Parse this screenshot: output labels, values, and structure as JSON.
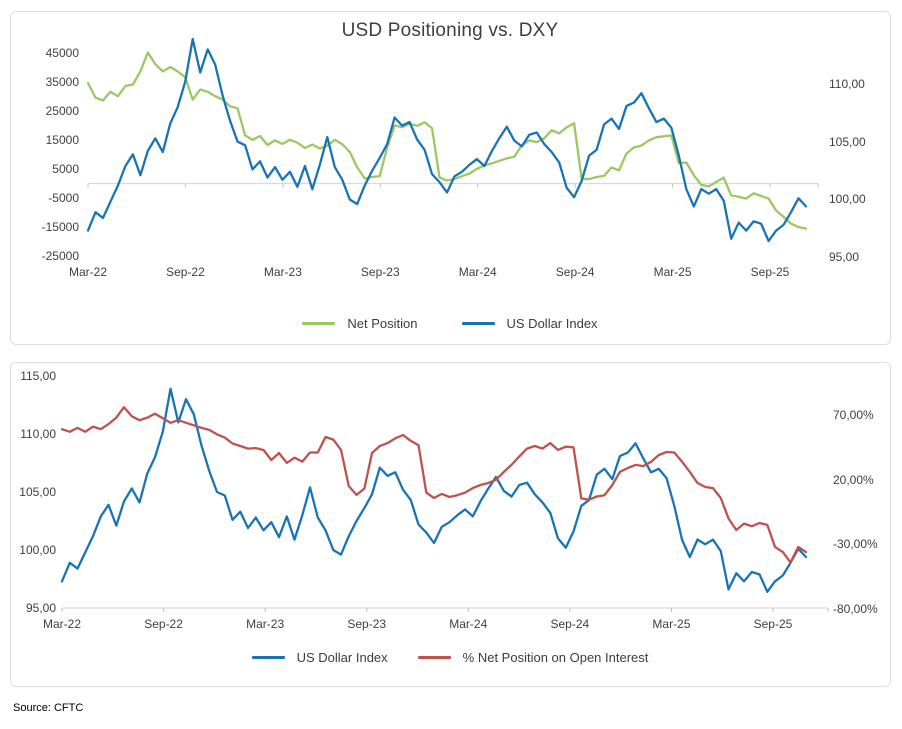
{
  "source_note": "Source: CFTC",
  "colors": {
    "net_position_green": "#9CC862",
    "dxy_blue": "#1874B6",
    "pct_net_red": "#BE534E",
    "axis_line": "#D9D9D9",
    "tick_mark": "#BFBFBF",
    "text": "#404040"
  },
  "chart_data": [
    {
      "type": "line",
      "title": "USD Positioning vs. DXY",
      "legend_position": "bottom",
      "grid": "single horizontal line at zero of left axis",
      "x_tick_labels": [
        "Mar-22",
        "Sep-22",
        "Mar-23",
        "Sep-23",
        "Mar-24",
        "Sep-24",
        "Mar-25",
        "Sep-25"
      ],
      "left_axis": {
        "ylim": [
          -25000,
          50000
        ],
        "tick_values": [
          45000,
          35000,
          25000,
          15000,
          5000,
          -5000,
          -15000,
          -25000
        ],
        "tick_labels": [
          "45000",
          "35000",
          "25000",
          "15000",
          "5000",
          "-5000",
          "-15000",
          "-25000"
        ]
      },
      "right_axis": {
        "ylim": [
          93,
          115
        ],
        "tick_values": [
          110,
          105,
          100,
          95
        ],
        "tick_labels": [
          "110,00",
          "105,00",
          "100,00",
          "95,00"
        ]
      },
      "series": [
        {
          "name": "Net Position",
          "axis": "left",
          "color": "#9CC862",
          "values": [
            34500,
            29500,
            28500,
            31500,
            30000,
            33500,
            34000,
            38500,
            45000,
            41000,
            38500,
            40000,
            38500,
            36500,
            28800,
            32300,
            31500,
            30000,
            28800,
            26500,
            25800,
            16500,
            15000,
            16300,
            13200,
            14800,
            13600,
            15000,
            14000,
            12200,
            13400,
            12000,
            13000,
            15000,
            13500,
            10800,
            5500,
            1700,
            2200,
            2500,
            12400,
            20000,
            19300,
            20500,
            19800,
            21000,
            19000,
            2000,
            1000,
            1500,
            2500,
            3400,
            5000,
            6200,
            6900,
            7800,
            8600,
            9200,
            13100,
            14800,
            14200,
            15500,
            18300,
            17200,
            19300,
            20700,
            1700,
            1500,
            2200,
            2600,
            5500,
            4500,
            10300,
            12400,
            13000,
            14800,
            15900,
            16200,
            16500,
            7000,
            7200,
            2800,
            -500,
            -1000,
            500,
            2000,
            -4100,
            -4600,
            -5200,
            -3400,
            -4300,
            -5200,
            -9300,
            -11500,
            -13800,
            -15000,
            -15500
          ]
        },
        {
          "name": "US Dollar Index",
          "axis": "right",
          "color": "#1874B6",
          "values": [
            97.3,
            98.9,
            98.4,
            99.8,
            101.2,
            102.9,
            103.9,
            102.1,
            104.2,
            105.3,
            104.1,
            106.6,
            108.0,
            110.2,
            113.9,
            111.0,
            113.0,
            111.7,
            109.0,
            106.8,
            105.0,
            104.7,
            102.6,
            103.3,
            101.9,
            102.8,
            101.7,
            102.4,
            101.1,
            102.9,
            100.9,
            103.0,
            105.4,
            102.8,
            101.7,
            100.0,
            99.6,
            101.2,
            102.5,
            103.6,
            104.8,
            107.1,
            106.4,
            106.7,
            105.2,
            104.3,
            102.2,
            101.5,
            100.6,
            102.0,
            102.4,
            103.0,
            103.5,
            102.9,
            104.2,
            105.3,
            106.3,
            105.1,
            104.6,
            105.6,
            105.8,
            104.8,
            104.1,
            103.2,
            101.0,
            100.2,
            101.6,
            103.8,
            104.3,
            106.5,
            107.0,
            106.1,
            108.1,
            108.4,
            109.2,
            107.9,
            106.7,
            107.0,
            106.2,
            103.8,
            100.9,
            99.4,
            100.9,
            100.5,
            100.9,
            99.9,
            96.6,
            98.0,
            97.3,
            98.1,
            97.9,
            96.4,
            97.3,
            97.8,
            98.9,
            100.1,
            99.4
          ]
        }
      ]
    },
    {
      "type": "line",
      "title": "",
      "legend_position": "bottom",
      "grid": "single horizontal line at bottom (95,00 level)",
      "x_tick_labels": [
        "Mar-22",
        "Sep-22",
        "Mar-23",
        "Sep-23",
        "Mar-24",
        "Sep-24",
        "Mar-25",
        "Sep-25"
      ],
      "left_axis": {
        "ylim": [
          95,
          115
        ],
        "tick_values": [
          115,
          110,
          105,
          100,
          95
        ],
        "tick_labels": [
          "115,00",
          "110,00",
          "105,00",
          "100,00",
          "95,00"
        ]
      },
      "right_axis": {
        "ylim": [
          -80,
          75
        ],
        "tick_values": [
          70,
          20,
          -30,
          -80
        ],
        "tick_labels": [
          "70,00%",
          "20,00%",
          "-30,00%",
          "-80,00%"
        ]
      },
      "series": [
        {
          "name": "US Dollar Index",
          "axis": "left",
          "color": "#1874B6",
          "values": [
            97.3,
            98.9,
            98.4,
            99.8,
            101.2,
            102.9,
            103.9,
            102.1,
            104.2,
            105.3,
            104.1,
            106.6,
            108.0,
            110.2,
            113.9,
            111.0,
            113.0,
            111.7,
            109.0,
            106.8,
            105.0,
            104.7,
            102.6,
            103.3,
            101.9,
            102.8,
            101.7,
            102.4,
            101.1,
            102.9,
            100.9,
            103.0,
            105.4,
            102.8,
            101.7,
            100.0,
            99.6,
            101.2,
            102.5,
            103.6,
            104.8,
            107.1,
            106.4,
            106.7,
            105.2,
            104.3,
            102.2,
            101.5,
            100.6,
            102.0,
            102.4,
            103.0,
            103.5,
            102.9,
            104.2,
            105.3,
            106.3,
            105.1,
            104.6,
            105.6,
            105.8,
            104.8,
            104.1,
            103.2,
            101.0,
            100.2,
            101.6,
            103.8,
            104.3,
            106.5,
            107.0,
            106.1,
            108.1,
            108.4,
            109.2,
            107.9,
            106.7,
            107.0,
            106.2,
            103.8,
            100.9,
            99.4,
            100.9,
            100.5,
            100.9,
            99.9,
            96.6,
            98.0,
            97.3,
            98.1,
            97.9,
            96.4,
            97.3,
            97.8,
            98.9,
            100.1,
            99.4
          ]
        },
        {
          "name": "% Net Position on Open Interest",
          "axis": "right",
          "color": "#BE534E",
          "values": [
            59,
            57,
            60,
            57,
            61,
            59,
            63,
            68,
            76,
            69,
            66,
            68,
            71,
            67.5,
            64,
            66,
            64,
            62,
            60,
            58.5,
            55,
            52.5,
            48,
            46,
            44,
            44.4,
            42.9,
            35.2,
            40.6,
            33,
            37,
            34,
            41,
            41,
            53,
            51,
            43,
            15,
            8.2,
            13,
            40.6,
            46,
            48.3,
            52,
            54.5,
            50,
            46.7,
            10,
            5.8,
            9,
            6.6,
            8,
            10,
            13.5,
            15.9,
            17.4,
            20,
            26,
            31.4,
            38,
            44,
            46,
            44,
            48.3,
            43,
            45.5,
            45,
            5.5,
            4.5,
            7,
            8,
            15.9,
            26.1,
            29,
            31.4,
            30.5,
            33.7,
            39.1,
            41.4,
            41,
            34,
            26,
            17.4,
            14.3,
            13.5,
            5.8,
            -10,
            -18.9,
            -14,
            -16,
            -13.5,
            -15,
            -32,
            -36,
            -44,
            -32,
            -36
          ]
        }
      ]
    }
  ]
}
